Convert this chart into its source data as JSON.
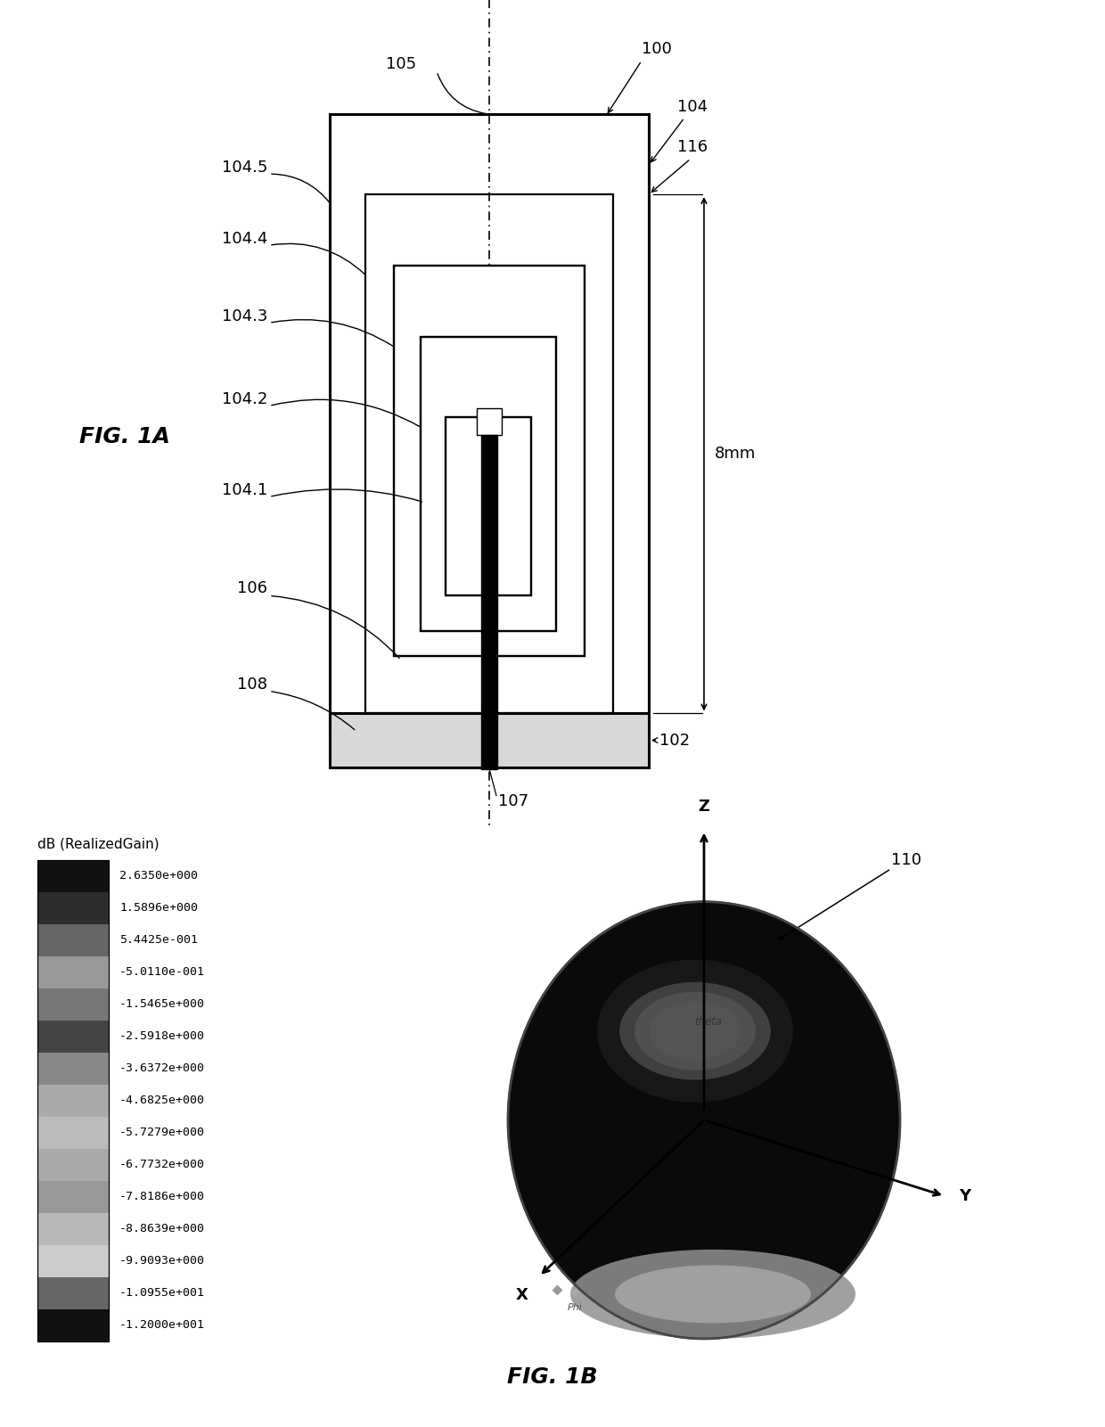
{
  "bg_color": "#ffffff",
  "fig_width": 12.4,
  "fig_height": 16.01,
  "fig1a_label": "FIG. 1A",
  "fig1b_label": "FIG. 1B",
  "colorbar_title": "dB (RealizedGain)",
  "colorbar_values": [
    "2.6350e+000",
    "1.5896e+000",
    "5.4425e-001",
    "-5.0110e-001",
    "-1.5465e+000",
    "-2.5918e+000",
    "-3.6372e+000",
    "-4.6825e+000",
    "-5.7279e+000",
    "-6.7732e+000",
    "-7.8186e+000",
    "-8.8639e+000",
    "-9.9093e+000",
    "-1.0955e+001",
    "-1.2000e+001"
  ],
  "colorbar_colors": [
    "#111111",
    "#2d2d2d",
    "#666666",
    "#999999",
    "#777777",
    "#444444",
    "#888888",
    "#aaaaaa",
    "#bbbbbb",
    "#aaaaaa",
    "#999999",
    "#b8b8b8",
    "#cccccc",
    "#666666",
    "#111111"
  ],
  "dimension_label": "8mm",
  "lw_main": 1.6,
  "lw_thick": 2.2
}
